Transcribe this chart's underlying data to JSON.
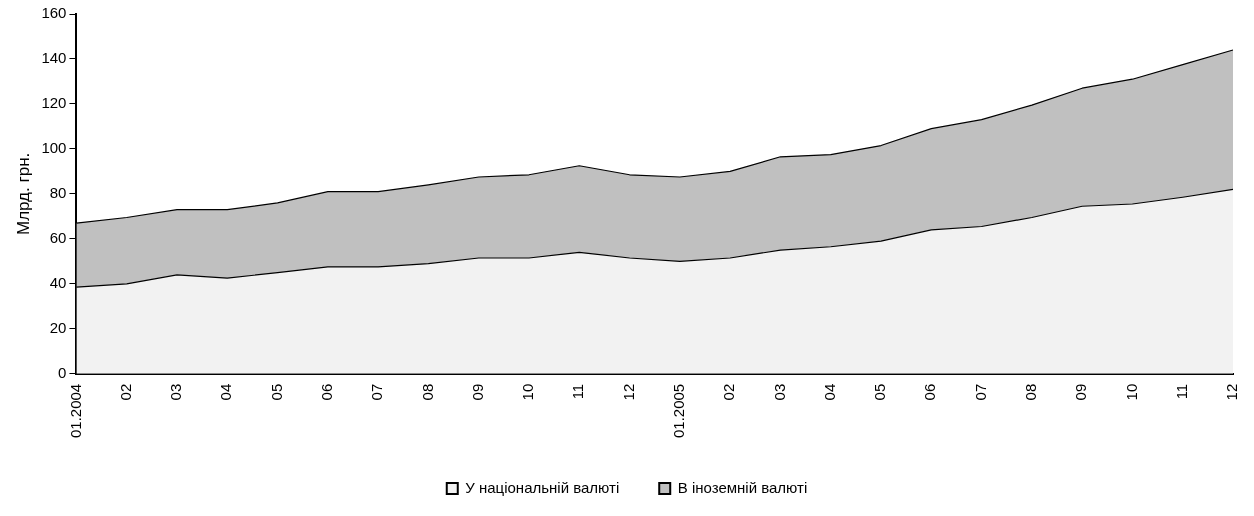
{
  "chart_data": {
    "type": "area",
    "stacked": true,
    "ylabel": "Млрд. грн.",
    "categories": [
      "01.2004",
      "02",
      "03",
      "04",
      "05",
      "06",
      "07",
      "08",
      "09",
      "10",
      "11",
      "12",
      "01.2005",
      "02",
      "03",
      "04",
      "05",
      "06",
      "07",
      "08",
      "09",
      "10",
      "11",
      "12"
    ],
    "series": [
      {
        "name": "У національній валюті",
        "color": "#f2f2f2",
        "values": [
          38.5,
          40,
          44,
          42.5,
          45,
          47.5,
          47.5,
          49,
          51.5,
          51.5,
          54,
          51.5,
          50,
          51.5,
          55,
          56.5,
          59,
          64,
          65.5,
          69.5,
          74.5,
          75.5,
          78.5,
          82
        ]
      },
      {
        "name": "В іноземній валюті",
        "color": "#c0c0c0",
        "values": [
          28.5,
          29.5,
          29,
          30.5,
          31,
          33.5,
          33.5,
          35,
          36,
          37,
          38.5,
          37,
          37.5,
          38.5,
          41.5,
          41,
          42.5,
          45,
          47.5,
          50,
          52.5,
          55.5,
          59,
          62
        ]
      }
    ],
    "ylim": [
      0,
      160
    ],
    "yticks": [
      0,
      20,
      40,
      60,
      80,
      100,
      120,
      140,
      160
    ],
    "grid": false,
    "legend": "bottom"
  }
}
